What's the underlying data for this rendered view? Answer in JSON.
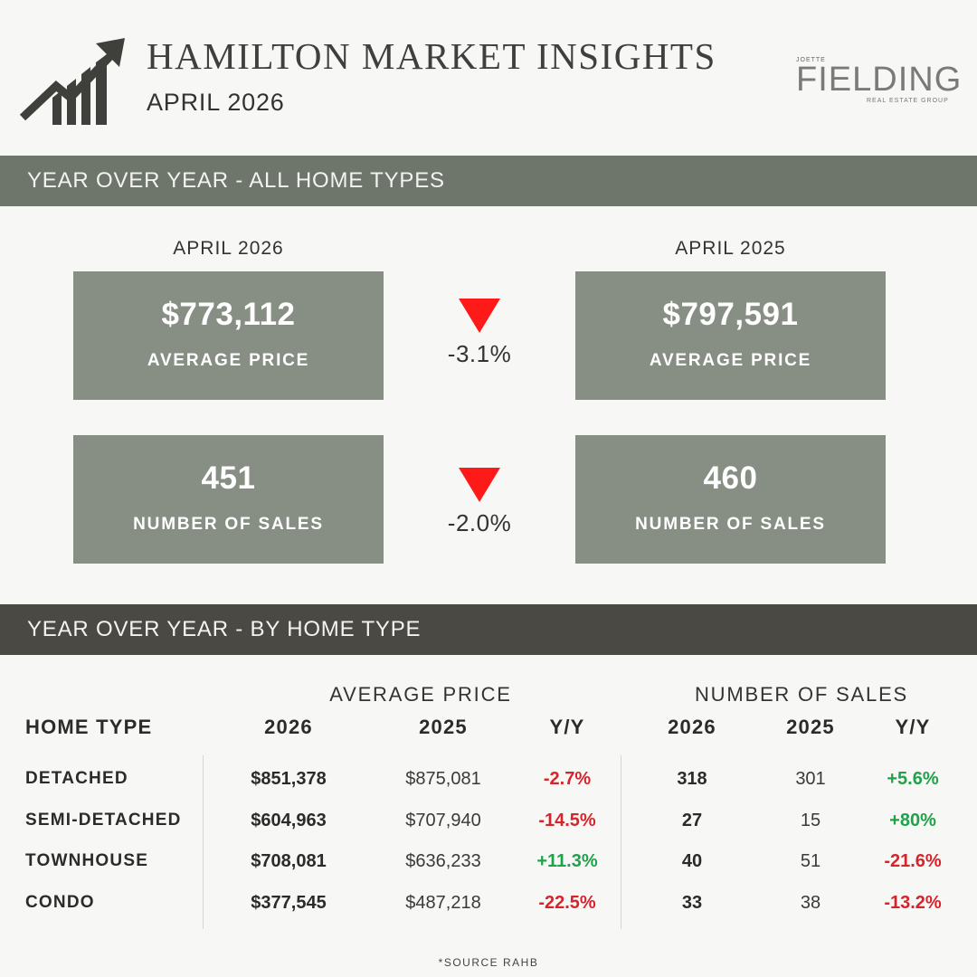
{
  "header": {
    "title": "HAMILTON MARKET INSIGHTS",
    "subtitle": "APRIL 2026",
    "icon": "trending-up-bar-chart-icon",
    "brand": {
      "small": "JOETTE",
      "name": "FIELDING",
      "tagline": "REAL ESTATE GROUP"
    }
  },
  "section_all": {
    "title": "YEAR OVER YEAR - ALL HOME TYPES",
    "period_current": "APRIL 2026",
    "period_previous": "APRIL 2025",
    "avg_price": {
      "current_value": "$773,112",
      "current_label": "AVERAGE PRICE",
      "previous_value": "$797,591",
      "previous_label": "AVERAGE PRICE",
      "change": "-3.1%",
      "direction_icon": "red-down-triangle-icon"
    },
    "sales": {
      "current_value": "451",
      "current_label": "NUMBER OF SALES",
      "previous_value": "460",
      "previous_label": "NUMBER OF SALES",
      "change": "-2.0%",
      "direction_icon": "red-down-triangle-icon"
    }
  },
  "section_type": {
    "title": "YEAR OVER YEAR - BY HOME TYPE",
    "group_price": "AVERAGE PRICE",
    "group_sales": "NUMBER OF SALES",
    "headers": {
      "type": "HOME TYPE",
      "p2026": "2026",
      "p2025": "2025",
      "pyy": "Y/Y",
      "s2026": "2026",
      "s2025": "2025",
      "syy": "Y/Y"
    },
    "rows": [
      {
        "type": "DETACHED",
        "p2026": "$851,378",
        "p2025": "$875,081",
        "pyy": "-2.7%",
        "s2026": "318",
        "s2025": "301",
        "syy": "+5.6%"
      },
      {
        "type": "SEMI-DETACHED",
        "p2026": "$604,963",
        "p2025": "$707,940",
        "pyy": "-14.5%",
        "s2026": "27",
        "s2025": "15",
        "syy": "+80%"
      },
      {
        "type": "TOWNHOUSE",
        "p2026": "$708,081",
        "p2025": "$636,233",
        "pyy": "+11.3%",
        "s2026": "40",
        "s2025": "51",
        "syy": "-21.6%"
      },
      {
        "type": "CONDO",
        "p2026": "$377,545",
        "p2025": "$487,218",
        "pyy": "-22.5%",
        "s2026": "33",
        "s2025": "38",
        "syy": "-13.2%"
      }
    ]
  },
  "colors": {
    "bar_all": "#6e756a",
    "bar_type": "#4a4944",
    "card": "#878f84",
    "negative": "#d6242b",
    "positive": "#1fa24a",
    "arrow_down": "#ff1a1a"
  },
  "footer": {
    "source": "*SOURCE RAHB"
  }
}
